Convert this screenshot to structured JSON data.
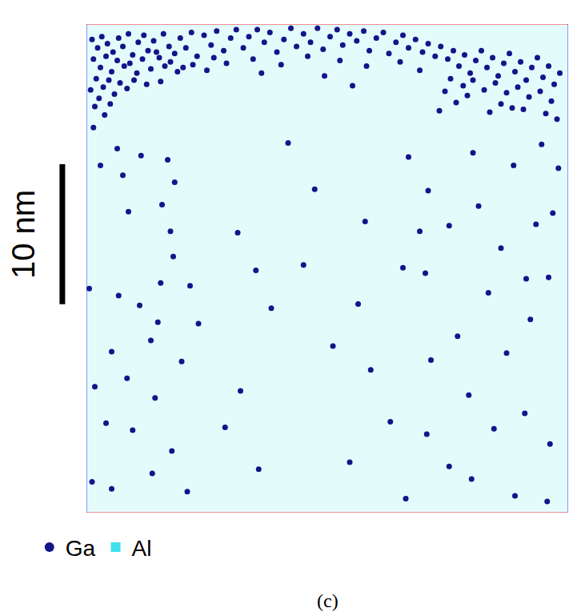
{
  "chart_data": {
    "type": "scatter",
    "caption": "(c)",
    "xlim": [
      0,
      34.4
    ],
    "ylim": [
      0,
      34.9
    ],
    "tick_labels": false,
    "grid": false,
    "legend": "bottom left",
    "scale_bar": {
      "label": "10 nm",
      "length": 10
    },
    "series": [
      {
        "name": "Ga",
        "color": "#14148a",
        "marker": "circle",
        "x": [
          0.4,
          0.8,
          1.1,
          1.5,
          1.9,
          2.3,
          2.6,
          3.0,
          3.3,
          3.7,
          4.1,
          4.4,
          4.8,
          5.2,
          5.5,
          5.9,
          6.3,
          6.7,
          7.1,
          7.5,
          7.9,
          0.5,
          1.0,
          1.4,
          1.8,
          2.2,
          2.7,
          3.1,
          3.6,
          4.0,
          4.6,
          5.0,
          5.6,
          6.0,
          6.5,
          0.7,
          1.2,
          1.6,
          2.4,
          3.4,
          4.3,
          0.3,
          0.9,
          2.0,
          2.9,
          5.3,
          6.9,
          7.6,
          0.6,
          1.3,
          0.5,
          1.7,
          8.4,
          8.9,
          9.3,
          9.8,
          10.3,
          10.7,
          11.2,
          11.6,
          12.2,
          12.7,
          13.1,
          13.6,
          14.1,
          14.6,
          15.0,
          15.5,
          16.0,
          16.5,
          16.9,
          17.4,
          17.9,
          18.3,
          18.8,
          19.3,
          19.8,
          20.2,
          20.7,
          21.2,
          21.6,
          22.1,
          22.6,
          23.0,
          23.5,
          24.0,
          24.4,
          24.9,
          9.1,
          10.0,
          11.9,
          13.9,
          15.8,
          18.1,
          20.0,
          22.4,
          8.6,
          12.5,
          17.0,
          19.0,
          23.8,
          25.3,
          25.8,
          26.2,
          26.6,
          27.0,
          27.4,
          27.8,
          28.2,
          28.6,
          29.0,
          29.4,
          29.8,
          30.2,
          30.6,
          31.0,
          31.4,
          31.8,
          32.2,
          32.6,
          33.0,
          33.4,
          33.8,
          26.0,
          26.9,
          27.6,
          28.4,
          29.2,
          30.0,
          30.8,
          31.6,
          32.4,
          33.2,
          29.6,
          31.2,
          32.8,
          33.6,
          30.4,
          27.2,
          26.4,
          25.6,
          28.8,
          25.2,
          2.2,
          1.0,
          2.6,
          3.9,
          5.8,
          6.3,
          5.4,
          6.0,
          6.2,
          3.0,
          0.2,
          2.3,
          5.3,
          5.1,
          3.8,
          4.6,
          1.8,
          6.8,
          2.9,
          0.6,
          4.9,
          1.4,
          3.3,
          6.1,
          0.4,
          1.8,
          4.7,
          7.2,
          8.0,
          7.4,
          9.9,
          11.0,
          12.1,
          13.2,
          15.5,
          16.3,
          17.6,
          18.8,
          19.4,
          20.3,
          12.3,
          14.4,
          10.8,
          22.6,
          23.0,
          21.7,
          19.9,
          25.9,
          23.8,
          24.4,
          24.2,
          27.6,
          28.0,
          29.6,
          30.5,
          32.1,
          33.3,
          33.0,
          31.7,
          30.0,
          28.7,
          26.5,
          24.6,
          27.3,
          29.1,
          31.3,
          33.1,
          25.9,
          27.5,
          30.6,
          32.9,
          22.8,
          24.3,
          32.5,
          33.7,
          31.4
        ],
        "y": [
          33.8,
          33.2,
          34.0,
          33.5,
          32.9,
          33.9,
          33.3,
          34.2,
          32.7,
          33.6,
          34.1,
          33.0,
          33.7,
          32.5,
          34.2,
          33.3,
          32.8,
          33.9,
          33.2,
          34.3,
          32.6,
          32.4,
          31.8,
          32.6,
          31.5,
          32.3,
          31.9,
          32.1,
          31.4,
          32.4,
          31.7,
          32.9,
          31.9,
          32.2,
          31.5,
          31.0,
          30.4,
          30.9,
          30.7,
          30.9,
          30.6,
          30.2,
          29.6,
          29.9,
          30.3,
          30.8,
          31.8,
          32.0,
          29.0,
          28.4,
          27.5,
          29.2,
          34.1,
          33.4,
          34.4,
          33.0,
          33.9,
          34.5,
          33.2,
          34.0,
          34.5,
          33.6,
          34.3,
          32.9,
          33.8,
          34.6,
          33.3,
          34.2,
          33.6,
          34.6,
          33.1,
          34.0,
          34.5,
          33.4,
          34.2,
          33.7,
          34.4,
          33.0,
          33.9,
          34.3,
          32.8,
          33.6,
          34.1,
          33.2,
          33.8,
          32.9,
          33.5,
          32.6,
          32.5,
          32.1,
          32.4,
          32.0,
          32.6,
          32.3,
          31.9,
          32.2,
          31.6,
          31.4,
          31.2,
          30.5,
          31.6,
          33.3,
          32.4,
          33.0,
          31.9,
          32.7,
          31.4,
          32.3,
          33.0,
          31.8,
          32.5,
          31.2,
          32.1,
          32.8,
          31.5,
          32.2,
          30.9,
          31.8,
          32.5,
          31.1,
          31.9,
          30.6,
          31.4,
          31.0,
          30.5,
          30.9,
          30.2,
          30.7,
          30.0,
          30.4,
          29.7,
          30.1,
          29.4,
          29.2,
          28.8,
          28.5,
          28.1,
          28.9,
          29.8,
          29.3,
          30.1,
          28.6,
          28.7,
          26.0,
          24.8,
          24.1,
          25.5,
          25.2,
          23.6,
          22.0,
          20.1,
          18.3,
          21.5,
          16.0,
          15.5,
          16.4,
          13.6,
          14.8,
          12.3,
          11.5,
          10.8,
          9.6,
          9.0,
          8.2,
          6.4,
          5.9,
          4.4,
          2.2,
          1.7,
          2.8,
          1.5,
          13.5,
          16.2,
          6.1,
          8.7,
          17.3,
          14.6,
          17.7,
          23.1,
          11.9,
          3.6,
          14.9,
          10.2,
          3.1,
          26.4,
          20.0,
          17.5,
          25.4,
          6.5,
          20.8,
          20.5,
          20.1,
          23.0,
          17.1,
          25.7,
          21.9,
          18.9,
          24.8,
          20.6,
          21.4,
          16.8,
          13.8,
          11.4,
          15.7,
          12.6,
          10.9,
          8.4,
          6.0,
          7.1,
          4.9,
          3.3,
          2.4,
          1.2,
          0.8,
          1.0,
          5.6,
          26.3,
          24.6,
          16.7
        ]
      },
      {
        "name": "Al",
        "color": "#3fe0ea",
        "marker": "dot"
      }
    ]
  }
}
